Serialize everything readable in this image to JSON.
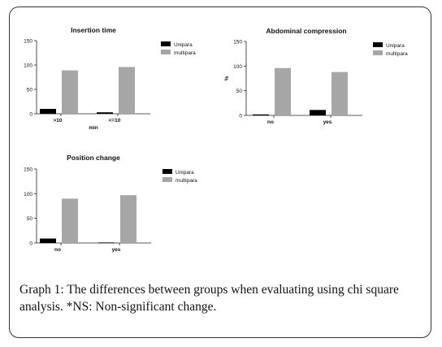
{
  "colors": {
    "unipara": "#000000",
    "multipara": "#a6a6a6"
  },
  "legend": [
    "Unipara",
    "multipara"
  ],
  "caption": {
    "label": "Graph 1:",
    "text": " The differences between groups when evaluating using chi square analysis. *NS: Non-significant change."
  },
  "chart_data": [
    {
      "type": "bar",
      "title": "Insertion time",
      "xlabel": "min",
      "ylabel": "",
      "categories": [
        ">10",
        "<=10"
      ],
      "ylim": [
        0,
        150
      ],
      "yticks": [
        0,
        50,
        100,
        150
      ],
      "series": [
        {
          "name": "Unipara",
          "values": [
            10,
            3
          ]
        },
        {
          "name": "multipara",
          "values": [
            89,
            96
          ]
        }
      ],
      "legend_position": "top-right"
    },
    {
      "type": "bar",
      "title": "Abdominal compression",
      "xlabel": "",
      "ylabel": "%",
      "categories": [
        "no",
        "yes"
      ],
      "ylim": [
        0,
        150
      ],
      "yticks": [
        0,
        50,
        100,
        150
      ],
      "series": [
        {
          "name": "Unipara",
          "values": [
            2,
            11
          ]
        },
        {
          "name": "multipara",
          "values": [
            96,
            88
          ]
        }
      ],
      "legend_position": "top-right"
    },
    {
      "type": "bar",
      "title": "Position change",
      "xlabel": "",
      "ylabel": "",
      "categories": [
        "no",
        "yes"
      ],
      "ylim": [
        0,
        150
      ],
      "yticks": [
        0,
        50,
        100,
        150
      ],
      "series": [
        {
          "name": "Unipara",
          "values": [
            9,
            1
          ]
        },
        {
          "name": "multipara",
          "values": [
            90,
            97
          ]
        }
      ],
      "legend_position": "top-right"
    }
  ]
}
